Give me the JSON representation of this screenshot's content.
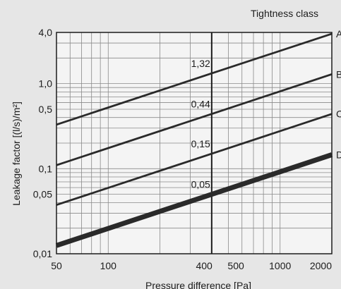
{
  "chart_data": {
    "type": "line",
    "title": "Tightness class",
    "xlabel": "Pressure difference [Pa]",
    "ylabel": "Leakage factor [(l/s)/m²]",
    "x_scale": "log",
    "y_scale": "log",
    "xlim": [
      50,
      2000
    ],
    "ylim": [
      0.01,
      4.0
    ],
    "grid": true,
    "x_ticks": [
      {
        "value": 50,
        "label": "50"
      },
      {
        "value": 100,
        "label": "100"
      },
      {
        "value": 400,
        "label": "400"
      },
      {
        "value": 500,
        "label": "500"
      },
      {
        "value": 1000,
        "label": "1000"
      },
      {
        "value": 2000,
        "label": "2000"
      }
    ],
    "y_ticks": [
      {
        "value": 4.0,
        "label": "4,0"
      },
      {
        "value": 1.0,
        "label": "1,0"
      },
      {
        "value": 0.5,
        "label": "0,5"
      },
      {
        "value": 0.1,
        "label": "0,1"
      },
      {
        "value": 0.05,
        "label": "0,05"
      },
      {
        "value": 0.01,
        "label": "0,01"
      }
    ],
    "reference_x": 400,
    "series": [
      {
        "name": "A",
        "x": [
          50,
          400,
          2000
        ],
        "values": [
          0.33,
          1.32,
          3.86
        ],
        "label_at_400": "1,32"
      },
      {
        "name": "B",
        "x": [
          50,
          400,
          2000
        ],
        "values": [
          0.11,
          0.44,
          1.29
        ],
        "label_at_400": "0,44"
      },
      {
        "name": "C",
        "x": [
          50,
          400,
          2000
        ],
        "values": [
          0.0375,
          0.15,
          0.44
        ],
        "label_at_400": "0,15"
      },
      {
        "name": "D",
        "x": [
          50,
          400,
          2000
        ],
        "values": [
          0.0125,
          0.05,
          0.146
        ],
        "label_at_400": "0,05"
      }
    ]
  }
}
